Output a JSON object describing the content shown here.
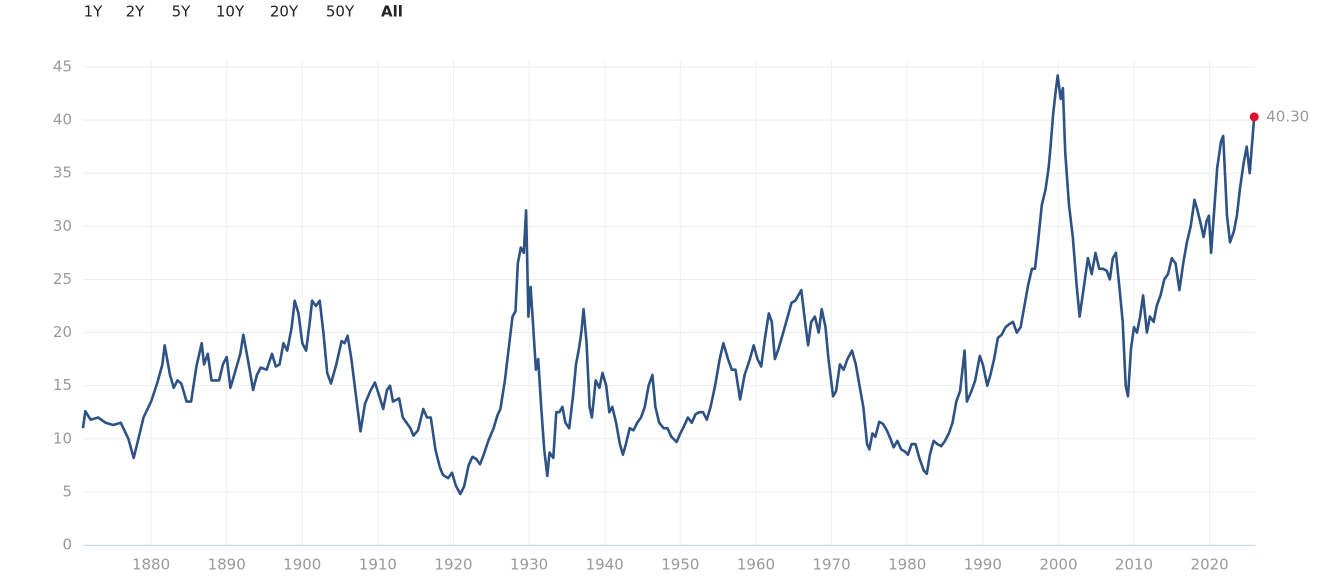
{
  "range_buttons": [
    {
      "label": "1Y",
      "active": false
    },
    {
      "label": "2Y",
      "active": false
    },
    {
      "label": "5Y",
      "active": false
    },
    {
      "label": "10Y",
      "active": false
    },
    {
      "label": "20Y",
      "active": false
    },
    {
      "label": "50Y",
      "active": false
    },
    {
      "label": "All",
      "active": true
    }
  ],
  "chart_data": {
    "type": "line",
    "grid": true,
    "xlim": [
      1871,
      2026
    ],
    "xticks": [
      1880,
      1890,
      1900,
      1910,
      1920,
      1930,
      1940,
      1950,
      1960,
      1970,
      1980,
      1990,
      2000,
      2010,
      2020
    ],
    "ylim": [
      0,
      45
    ],
    "yticks": [
      0,
      5,
      10,
      15,
      20,
      25,
      30,
      35,
      40,
      45
    ],
    "x": [
      1871,
      1871.3,
      1872,
      1873,
      1874,
      1875,
      1876,
      1877,
      1877.7,
      1878.5,
      1879,
      1880,
      1880.8,
      1881.5,
      1881.8,
      1882.5,
      1883,
      1883.5,
      1884,
      1884.7,
      1885.3,
      1886,
      1886.7,
      1887,
      1887.5,
      1888,
      1889,
      1889.5,
      1890,
      1890.5,
      1891,
      1891.8,
      1892.2,
      1892.8,
      1893.5,
      1894,
      1894.5,
      1895.3,
      1896,
      1896.5,
      1897,
      1897.5,
      1898,
      1898.6,
      1899,
      1899.5,
      1900,
      1900.5,
      1901,
      1901.3,
      1901.8,
      1902.3,
      1902.8,
      1903.3,
      1903.8,
      1904.5,
      1905.2,
      1905.6,
      1906,
      1906.5,
      1907.2,
      1907.7,
      1908.3,
      1909,
      1909.6,
      1910.2,
      1910.7,
      1911.2,
      1911.6,
      1912,
      1912.8,
      1913.3,
      1913.8,
      1914.3,
      1914.7,
      1915.3,
      1916,
      1916.5,
      1917,
      1917.6,
      1918.2,
      1918.6,
      1919.3,
      1919.8,
      1920.3,
      1920.9,
      1921.4,
      1922,
      1922.5,
      1923,
      1923.5,
      1924,
      1924.6,
      1925.3,
      1925.8,
      1926.2,
      1926.8,
      1927.3,
      1927.8,
      1928.2,
      1928.5,
      1928.9,
      1929.3,
      1929.6,
      1929.9,
      1930.2,
      1930.5,
      1930.9,
      1931.2,
      1931.6,
      1932,
      1932.4,
      1932.7,
      1933.2,
      1933.6,
      1934,
      1934.4,
      1934.8,
      1935.3,
      1935.8,
      1936.2,
      1936.6,
      1936.9,
      1937.2,
      1937.6,
      1938,
      1938.3,
      1938.8,
      1939.3,
      1939.7,
      1940.2,
      1940.6,
      1941,
      1941.5,
      1942,
      1942.4,
      1942.8,
      1943.3,
      1943.8,
      1944.3,
      1944.8,
      1945.3,
      1945.8,
      1946.3,
      1946.7,
      1947.2,
      1947.8,
      1948.3,
      1948.8,
      1949.5,
      1950,
      1950.5,
      1951,
      1951.5,
      1952,
      1952.5,
      1953,
      1953.5,
      1954,
      1954.6,
      1955.2,
      1955.7,
      1956.3,
      1956.8,
      1957.3,
      1957.9,
      1958.5,
      1959.2,
      1959.7,
      1960.2,
      1960.7,
      1961.2,
      1961.7,
      1962.1,
      1962.5,
      1963,
      1963.6,
      1964.2,
      1964.7,
      1965.2,
      1965.6,
      1966,
      1966.5,
      1966.9,
      1967.3,
      1967.8,
      1968.3,
      1968.7,
      1969.2,
      1969.6,
      1970.2,
      1970.6,
      1971.1,
      1971.6,
      1972.1,
      1972.7,
      1973.2,
      1973.7,
      1974.2,
      1974.7,
      1975,
      1975.4,
      1975.8,
      1976.3,
      1976.8,
      1977.3,
      1977.8,
      1978.2,
      1978.7,
      1979.2,
      1979.7,
      1980.1,
      1980.6,
      1981.1,
      1981.6,
      1982.2,
      1982.6,
      1983,
      1983.5,
      1984,
      1984.5,
      1985,
      1985.5,
      1986,
      1986.5,
      1987,
      1987.6,
      1987.9,
      1988.5,
      1989,
      1989.6,
      1990,
      1990.6,
      1991,
      1991.5,
      1992,
      1992.5,
      1993,
      1993.5,
      1994,
      1994.5,
      1995,
      1995.5,
      1996,
      1996.5,
      1996.9,
      1997.3,
      1997.8,
      1998.3,
      1998.7,
      1998.9,
      1999.3,
      1999.6,
      1999.9,
      2000.3,
      2000.6,
      2000.9,
      2001.4,
      2001.9,
      2002.4,
      2002.8,
      2003.3,
      2003.9,
      2004.4,
      2004.9,
      2005.4,
      2005.9,
      2006.4,
      2006.8,
      2007.2,
      2007.6,
      2008.1,
      2008.5,
      2008.9,
      2009.2,
      2009.6,
      2010,
      2010.4,
      2010.8,
      2011.2,
      2011.7,
      2012.1,
      2012.6,
      2013,
      2013.5,
      2014,
      2014.5,
      2015,
      2015.5,
      2016,
      2016.5,
      2017,
      2017.5,
      2018,
      2018.4,
      2018.9,
      2019.2,
      2019.6,
      2019.9,
      2020.2,
      2020.6,
      2021,
      2021.5,
      2021.8,
      2022.3,
      2022.7,
      2023.2,
      2023.6,
      2024,
      2024.5,
      2024.9,
      2025.3,
      2025.9
    ],
    "series": [
      {
        "color": "#2e5283",
        "values": [
          11,
          12.6,
          11.8,
          12,
          11.5,
          11.3,
          11.5,
          10,
          8.2,
          10.5,
          12,
          13.5,
          15.2,
          17,
          18.8,
          16,
          14.8,
          15.5,
          15.2,
          13.5,
          13.5,
          16.8,
          19,
          17,
          18,
          15.5,
          15.5,
          17,
          17.7,
          14.8,
          16,
          18,
          19.8,
          17.5,
          14.6,
          16,
          16.7,
          16.5,
          18,
          16.8,
          17,
          19,
          18.3,
          20.5,
          23,
          21.8,
          19,
          18.3,
          21,
          23,
          22.5,
          23,
          20,
          16.2,
          15.2,
          17,
          19.2,
          19,
          19.7,
          17.5,
          13.5,
          10.7,
          13.3,
          14.5,
          15.3,
          14,
          12.8,
          14.6,
          15,
          13.5,
          13.8,
          12,
          11.5,
          11,
          10.3,
          10.8,
          12.8,
          12,
          12,
          9,
          7.3,
          6.6,
          6.3,
          6.8,
          5.6,
          4.8,
          5.5,
          7.5,
          8.3,
          8.1,
          7.6,
          8.5,
          9.8,
          11,
          12.2,
          12.8,
          15.5,
          18.5,
          21.5,
          22,
          26.5,
          28,
          27.5,
          31.5,
          21.5,
          24.3,
          21,
          16.5,
          17.5,
          13,
          9,
          6.5,
          8.7,
          8.2,
          12.5,
          12.5,
          13,
          11.5,
          11,
          14,
          17,
          18.5,
          20,
          22.2,
          19,
          13,
          12,
          15.5,
          14.8,
          16.2,
          15,
          12.5,
          13,
          11.5,
          9.5,
          8.5,
          9.5,
          11,
          10.8,
          11.5,
          12,
          13,
          15,
          16,
          13,
          11.5,
          11,
          11,
          10.2,
          9.7,
          10.5,
          11.2,
          12,
          11.5,
          12.3,
          12.5,
          12.5,
          11.8,
          13,
          15,
          17.5,
          19,
          17.5,
          16.5,
          16.5,
          13.7,
          16,
          17.5,
          18.8,
          17.5,
          16.8,
          19.5,
          21.8,
          21,
          17.5,
          18.5,
          20,
          21.5,
          22.8,
          23,
          23.5,
          24,
          21,
          18.8,
          21,
          21.5,
          20,
          22.2,
          20.5,
          17.5,
          14,
          14.5,
          17,
          16.5,
          17.5,
          18.3,
          17,
          15,
          13,
          9.5,
          9,
          10.5,
          10.2,
          11.6,
          11.4,
          10.8,
          10,
          9.2,
          9.8,
          9,
          8.8,
          8.5,
          9.5,
          9.5,
          8.2,
          7,
          6.7,
          8.5,
          9.8,
          9.5,
          9.3,
          9.8,
          10.5,
          11.5,
          13.5,
          14.5,
          18.3,
          13.5,
          14.5,
          15.5,
          17.8,
          17,
          15,
          16,
          17.5,
          19.5,
          19.8,
          20.5,
          20.8,
          21,
          20,
          20.5,
          22.5,
          24.5,
          26,
          26,
          28.5,
          32,
          33.5,
          35.5,
          37,
          40.5,
          42.5,
          44.2,
          42,
          43,
          37,
          32,
          29,
          24.5,
          21.5,
          24,
          27,
          25.5,
          27.5,
          26,
          26,
          25.8,
          25,
          27,
          27.5,
          24,
          21,
          15,
          14,
          18.5,
          20.5,
          20,
          21.5,
          23.5,
          20,
          21.5,
          21,
          22.5,
          23.5,
          25,
          25.5,
          27,
          26.5,
          24,
          26.5,
          28.5,
          30,
          32.5,
          31.5,
          30,
          29,
          30.5,
          31,
          27.5,
          31.5,
          35.5,
          38,
          38.5,
          31,
          28.5,
          29.5,
          31,
          33.5,
          36,
          37.5,
          35,
          40.3
        ]
      }
    ],
    "end_label": {
      "value": 40.3,
      "label": "40.30",
      "color": "#e0102e"
    }
  }
}
